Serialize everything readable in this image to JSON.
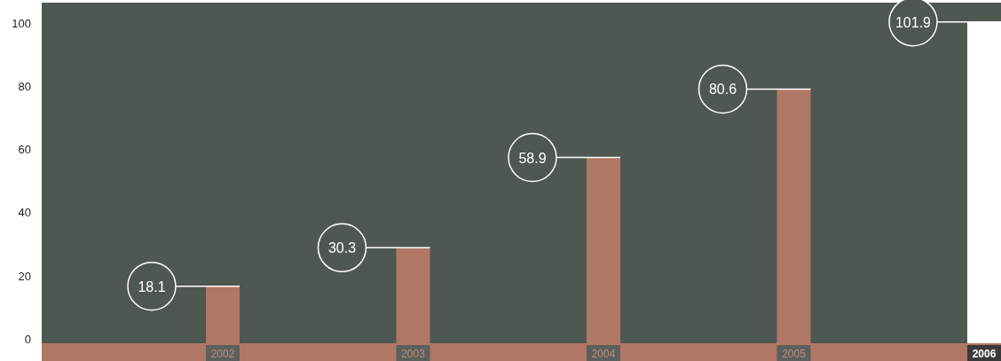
{
  "chart_data": {
    "type": "bar",
    "categories": [
      "2002",
      "2003",
      "2004",
      "2005",
      "2006"
    ],
    "values": [
      18.1,
      30.3,
      58.9,
      80.6,
      101.9
    ],
    "colors": [
      "#b07766",
      "#b07766",
      "#b07766",
      "#b07766",
      "#ffffff"
    ],
    "ylim": [
      0,
      108
    ],
    "yticks": [
      0,
      20,
      40,
      60,
      80,
      100
    ],
    "grid": false,
    "data_labels": true
  }
}
